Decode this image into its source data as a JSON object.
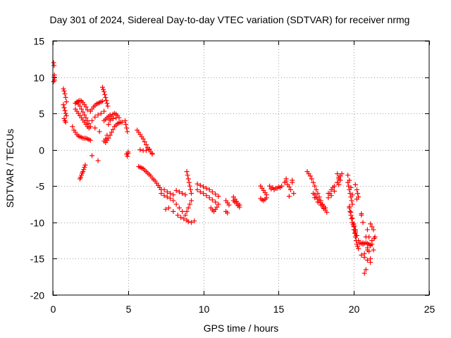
{
  "chart_data": {
    "type": "scatter",
    "title": "Day 301 of 2024, Sidereal Day-to-day VTEC variation (SDTVAR) for receiver nrmg",
    "xlabel": "GPS time / hours",
    "ylabel": "SDTVAR / TECUs",
    "xlim": [
      0,
      25
    ],
    "ylim": [
      -20,
      15
    ],
    "xticks": [
      0,
      5,
      10,
      15,
      20,
      25
    ],
    "yticks": [
      -20,
      -15,
      -10,
      -5,
      0,
      5,
      10,
      15
    ],
    "xtick_labels": [
      "0",
      "5",
      "10",
      "15",
      "20",
      "25"
    ],
    "ytick_labels": [
      "-20",
      "-15",
      "-10",
      "-5",
      "0",
      "5",
      "10",
      "15"
    ],
    "grid": true,
    "marker": "plus",
    "color": "#ff0000",
    "series": [
      {
        "name": "SDTVAR",
        "x": [
          0.05,
          0.08,
          0.1,
          0.12,
          0.05,
          0.08,
          0.7,
          0.75,
          0.8,
          0.85,
          0.9,
          0.7,
          0.75,
          0.8,
          0.85,
          0.9,
          0.75,
          0.8,
          0.85,
          1.3,
          1.4,
          1.5,
          1.6,
          1.7,
          1.8,
          1.9,
          2.0,
          2.1,
          2.2,
          2.3,
          2.4,
          2.5,
          1.5,
          1.6,
          1.7,
          1.8,
          1.9,
          2.0,
          2.1,
          2.2,
          2.3,
          1.5,
          1.6,
          1.7,
          1.8,
          1.9,
          2.0,
          2.1,
          2.2,
          2.3,
          2.4,
          2.5,
          2.4,
          2.3,
          2.2,
          2.1,
          2.0,
          1.9,
          1.8,
          1.7,
          1.6,
          1.5,
          1.8,
          1.85,
          1.9,
          1.95,
          2.0,
          2.05,
          2.1,
          2.15,
          2.5,
          2.6,
          2.7,
          2.8,
          2.9,
          3.0,
          3.1,
          3.2,
          3.3,
          2.6,
          2.8,
          3.0,
          3.2,
          3.4,
          2.6,
          2.8,
          3.1,
          3.0,
          3.3,
          3.35,
          3.4,
          3.45,
          3.5,
          3.55,
          3.6,
          3.65,
          3.4,
          3.5,
          3.6,
          3.7,
          3.8,
          3.5,
          3.6,
          3.7,
          3.8,
          3.9,
          4.0,
          4.1,
          4.2,
          4.3,
          4.4,
          4.5,
          4.6,
          3.4,
          3.5,
          3.6,
          3.7,
          3.8,
          3.9,
          4.0,
          4.1,
          4.2,
          4.3,
          3.8,
          4.0,
          4.2,
          4.4,
          4.8,
          4.85,
          4.9,
          4.95,
          5.0,
          4.9,
          4.95,
          5.0,
          5.6,
          5.7,
          5.8,
          5.9,
          6.0,
          6.1,
          6.2,
          6.3,
          6.4,
          6.5,
          6.6,
          5.7,
          5.8,
          5.9,
          6.0,
          6.1,
          6.2,
          6.3,
          6.4,
          6.5,
          6.6,
          6.7,
          6.8,
          6.9,
          7.0,
          7.1,
          7.2,
          5.8,
          6.0,
          6.2,
          6.4,
          6.6,
          7.2,
          7.4,
          7.6,
          7.8,
          8.0,
          8.2,
          8.4,
          8.6,
          8.8,
          7.4,
          7.6,
          7.8,
          8.0,
          8.2,
          8.4,
          8.6,
          8.8,
          7.5,
          7.7,
          8.0,
          8.3,
          8.5,
          8.7,
          8.9,
          9.0,
          9.2,
          9.4,
          8.9,
          8.95,
          9.0,
          9.05,
          9.1,
          9.15,
          9.2,
          8.9,
          9.0,
          9.1,
          9.2,
          9.6,
          9.8,
          10.0,
          10.2,
          10.4,
          10.6,
          10.8,
          11.0,
          9.6,
          9.8,
          10.0,
          10.2,
          10.4,
          10.6,
          10.8,
          11.0,
          10.5,
          10.6,
          10.7,
          10.8,
          10.9,
          11.5,
          11.6,
          11.7,
          11.5,
          11.6,
          12.0,
          12.1,
          12.2,
          12.3,
          12.4,
          12.0,
          12.1,
          12.2,
          12.3,
          12.4,
          13.8,
          13.9,
          14.0,
          14.1,
          14.2,
          13.8,
          13.9,
          14.0,
          14.1,
          14.2,
          14.4,
          14.6,
          14.8,
          15.0,
          15.2,
          14.5,
          14.7,
          14.9,
          15.1,
          15.4,
          15.5,
          15.6,
          15.7,
          15.8,
          15.9,
          16.0,
          15.5,
          15.7,
          15.9,
          16.9,
          17.0,
          17.1,
          17.2,
          17.3,
          17.4,
          17.5,
          17.6,
          17.7,
          17.8,
          17.9,
          18.0,
          18.1,
          18.2,
          17.3,
          17.4,
          17.5,
          17.6,
          17.7,
          17.8,
          17.9,
          18.0,
          18.1,
          17.4,
          17.6,
          17.8,
          18.0,
          18.3,
          18.5,
          18.7,
          18.9,
          19.0,
          19.1,
          19.2,
          18.3,
          18.5,
          18.7,
          18.4,
          18.6,
          18.9,
          19.0,
          19.1,
          18.9,
          19.0,
          19.6,
          19.65,
          19.7,
          19.75,
          19.8,
          19.85,
          19.9,
          19.6,
          19.7,
          19.8,
          19.9,
          19.7,
          19.75,
          19.8,
          19.85,
          19.9,
          19.95,
          20.0,
          20.05,
          20.1,
          19.7,
          19.8,
          19.9,
          20.0,
          20.1,
          20.15,
          20.0,
          20.05,
          20.1,
          20.15,
          20.2,
          20.25,
          20.3,
          20.0,
          20.1,
          20.2,
          20.3,
          20.2,
          20.25,
          20.3,
          20.1,
          20.2,
          20.4,
          20.5,
          20.6,
          20.7,
          20.8,
          20.9,
          21.0,
          21.1,
          21.2,
          20.5,
          20.7,
          20.9,
          21.1,
          20.8,
          20.9,
          21.0,
          21.1,
          20.5,
          20.6,
          20.7,
          20.8,
          20.9,
          21.1,
          21.2,
          21.3,
          21.4,
          21.1,
          21.2,
          21.3,
          21.35,
          20.5,
          20.6,
          21.0,
          20.7,
          20.9
        ],
        "y": [
          12.0,
          11.6,
          10.3,
          9.6,
          9.4,
          10.0,
          8.4,
          8.1,
          7.7,
          7.2,
          6.6,
          6.2,
          5.8,
          5.4,
          5.0,
          4.7,
          4.3,
          4.0,
          3.8,
          3.2,
          2.7,
          2.4,
          2.1,
          1.9,
          1.8,
          1.7,
          1.6,
          1.6,
          1.6,
          1.5,
          1.4,
          1.3,
          6.4,
          6.6,
          6.7,
          6.8,
          6.7,
          6.5,
          6.2,
          5.9,
          5.5,
          5.6,
          5.3,
          5.0,
          4.7,
          4.4,
          4.1,
          3.8,
          3.5,
          3.2,
          3.0,
          3.2,
          3.6,
          4.0,
          4.4,
          4.8,
          5.2,
          5.6,
          6.0,
          6.3,
          6.5,
          6.4,
          -4.0,
          -3.8,
          -3.5,
          -3.2,
          -3.0,
          -2.7,
          -2.4,
          -2.1,
          5.3,
          5.6,
          5.9,
          6.1,
          6.3,
          6.4,
          6.5,
          6.6,
          6.7,
          4.0,
          4.5,
          4.8,
          5.0,
          5.3,
          -0.8,
          3.0,
          2.5,
          -1.5,
          8.6,
          8.3,
          8.0,
          7.6,
          7.2,
          6.8,
          6.4,
          6.0,
          4.0,
          4.2,
          4.4,
          4.6,
          4.8,
          1.0,
          1.3,
          1.6,
          2.0,
          2.4,
          2.8,
          3.2,
          3.4,
          3.6,
          3.7,
          3.8,
          3.8,
          1.2,
          1.5,
          2.0,
          3.5,
          4.2,
          4.6,
          4.9,
          5.0,
          4.9,
          4.7,
          4.0,
          4.3,
          4.4,
          4.4,
          4.0,
          3.5,
          3.0,
          2.5,
          -0.3,
          -0.6,
          -0.9,
          -0.5,
          2.7,
          2.4,
          2.1,
          1.8,
          1.5,
          1.1,
          0.7,
          0.3,
          0.0,
          -0.3,
          -0.6,
          -2.3,
          -2.4,
          -2.5,
          -2.6,
          -2.8,
          -3.0,
          -3.2,
          -3.4,
          -3.6,
          -3.9,
          -4.1,
          -4.3,
          -4.6,
          -4.9,
          -5.2,
          -5.5,
          0.0,
          -0.1,
          -0.1,
          0.1,
          -0.5,
          -6.0,
          -6.3,
          -6.5,
          -6.7,
          -7.0,
          -7.5,
          -8.0,
          -8.5,
          -9.0,
          -5.5,
          -5.8,
          -6.0,
          -6.2,
          -5.6,
          -5.8,
          -6.0,
          -6.2,
          -8.2,
          -8.0,
          -8.5,
          -9.0,
          -9.3,
          -9.5,
          -9.7,
          -9.9,
          -10.0,
          -9.8,
          -3.0,
          -3.5,
          -4.0,
          -4.5,
          -5.0,
          -5.5,
          -6.0,
          -8.5,
          -8.0,
          -7.5,
          -7.0,
          -5.5,
          -5.8,
          -6.0,
          -6.3,
          -6.6,
          -6.9,
          -7.2,
          -7.5,
          -4.7,
          -4.9,
          -5.1,
          -5.3,
          -5.5,
          -5.8,
          -6.1,
          -6.4,
          -8.0,
          -8.3,
          -8.5,
          -8.2,
          -7.9,
          -7.0,
          -7.3,
          -7.6,
          -8.5,
          -8.7,
          -6.5,
          -6.8,
          -7.1,
          -7.4,
          -7.6,
          -7.0,
          -7.2,
          -7.4,
          -7.7,
          -7.9,
          -5.0,
          -5.3,
          -5.6,
          -5.9,
          -6.2,
          -6.7,
          -6.9,
          -7.0,
          -6.8,
          -6.6,
          -5.0,
          -5.2,
          -5.3,
          -5.1,
          -5.0,
          -5.4,
          -5.5,
          -5.3,
          -5.2,
          -4.5,
          -4.3,
          -4.8,
          -5.1,
          -5.5,
          -4.5,
          -6.0,
          -4.0,
          -6.4,
          -4.2,
          -3.0,
          -3.3,
          -3.6,
          -4.0,
          -4.5,
          -5.0,
          -5.5,
          -6.0,
          -6.5,
          -7.0,
          -7.5,
          -8.0,
          -8.3,
          -8.6,
          -6.0,
          -6.2,
          -6.5,
          -6.8,
          -7.0,
          -7.3,
          -7.6,
          -7.8,
          -8.0,
          -6.6,
          -7.2,
          -7.6,
          -8.1,
          -6.0,
          -5.5,
          -5.0,
          -4.5,
          -4.0,
          -3.6,
          -3.3,
          -6.6,
          -6.3,
          -5.7,
          -6.0,
          -5.2,
          -3.3,
          -3.8,
          -4.2,
          -4.5,
          -4.8,
          -4.5,
          -5.0,
          -5.5,
          -6.0,
          -6.5,
          -7.0,
          -7.5,
          -3.5,
          -4.2,
          -5.2,
          -6.2,
          -8.0,
          -8.5,
          -9.0,
          -9.5,
          -10.0,
          -10.3,
          -10.6,
          -11.0,
          -11.4,
          -7.8,
          -8.6,
          -9.4,
          -10.2,
          -11.0,
          -11.8,
          -11.0,
          -11.5,
          -12.0,
          -12.5,
          -13.0,
          -13.3,
          -13.6,
          -10.5,
          -11.2,
          -11.8,
          -12.5,
          -5.5,
          -6.0,
          -6.5,
          -4.8,
          -6.8,
          -12.8,
          -12.9,
          -13.0,
          -12.9,
          -12.8,
          -12.9,
          -13.0,
          -13.1,
          -13.0,
          -14.5,
          -14.8,
          -15.2,
          -15.5,
          -12.0,
          -13.5,
          -14.0,
          -15.0,
          -9.0,
          -10.0,
          -14.3,
          -16.5,
          -13.8,
          -10.2,
          -10.6,
          -11.0,
          -12.0,
          -13.2,
          -12.5,
          -13.8,
          -12.2,
          -8.8,
          -12.8,
          -12.0,
          -17.0,
          -11.0
        ]
      }
    ]
  }
}
